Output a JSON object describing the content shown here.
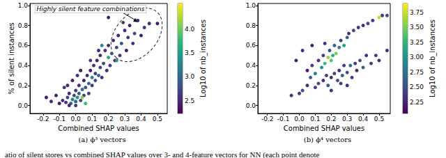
{
  "chart_data": [
    {
      "type": "scatter",
      "title": "(a) ϕ³ vectors",
      "x_label": "Combined SHAP values",
      "y_label": "% of silent instances",
      "annotation": "Highly silent feature combinations",
      "xlim": [
        -0.28,
        0.56
      ],
      "xticks": [
        -0.2,
        -0.1,
        {
          "value": 0,
          "label": "0.0"
        },
        0.1,
        0.2,
        0.3,
        0.4,
        0.5
      ],
      "ylim": [
        -0.08,
        1.02
      ],
      "yticks": [
        {
          "value": 0,
          "label": "0.0"
        },
        0.2,
        0.4,
        0.6,
        0.8,
        {
          "value": 1,
          "label": "1.0"
        }
      ],
      "colorbar": {
        "label": "Log10 of nb_instances",
        "range": [
          2.23,
          4.54
        ],
        "ticks": [
          2.5,
          {
            "value": 3,
            "label": "3.0"
          },
          3.5,
          {
            "value": 4,
            "label": "4.0"
          }
        ]
      },
      "points": [
        [
          -0.1,
          0.02,
          2.4
        ],
        [
          -0.08,
          0.05,
          2.5
        ],
        [
          -0.06,
          0.03,
          2.6
        ],
        [
          -0.05,
          0.08,
          2.7
        ],
        [
          -0.04,
          0.12,
          2.5
        ],
        [
          -0.03,
          0.02,
          2.9
        ],
        [
          -0.02,
          0.06,
          3.2
        ],
        [
          -0.01,
          0.1,
          2.8
        ],
        [
          0,
          0.04,
          3.0
        ],
        [
          0,
          0.15,
          2.6
        ],
        [
          0.01,
          0.08,
          3.4
        ],
        [
          0.02,
          0.12,
          2.9
        ],
        [
          0.02,
          0.2,
          2.5
        ],
        [
          0.03,
          0.05,
          2.7
        ],
        [
          0.04,
          0.16,
          3.1
        ],
        [
          0.05,
          0.1,
          2.6
        ],
        [
          0.05,
          0.25,
          2.4
        ],
        [
          0.06,
          0.18,
          2.8
        ],
        [
          0.07,
          0.3,
          2.5
        ],
        [
          0.08,
          0.12,
          2.7
        ],
        [
          0.08,
          0.22,
          3.0
        ],
        [
          0.09,
          0.35,
          2.4
        ],
        [
          0.1,
          0.2,
          2.6
        ],
        [
          0.1,
          0.28,
          3.3
        ],
        [
          0.11,
          0.4,
          2.5
        ],
        [
          0.12,
          0.25,
          2.8
        ],
        [
          0.12,
          0.32,
          2.6
        ],
        [
          0.13,
          0.45,
          2.4
        ],
        [
          0.14,
          0.3,
          3.0
        ],
        [
          0.15,
          0.38,
          2.7
        ],
        [
          0.15,
          0.5,
          2.5
        ],
        [
          0.16,
          0.28,
          2.5
        ],
        [
          0.17,
          0.42,
          2.8
        ],
        [
          0.18,
          0.55,
          2.6
        ],
        [
          0.19,
          0.35,
          2.5
        ],
        [
          0.2,
          0.48,
          3.6
        ],
        [
          0.2,
          0.6,
          2.5
        ],
        [
          0.21,
          0.4,
          2.6
        ],
        [
          0.22,
          0.52,
          2.9
        ],
        [
          0.23,
          0.65,
          2.5
        ],
        [
          0.24,
          0.45,
          2.4
        ],
        [
          0.25,
          0.58,
          2.7
        ],
        [
          0.26,
          0.7,
          2.5
        ],
        [
          0.27,
          0.5,
          2.6
        ],
        [
          0.28,
          0.62,
          2.8
        ],
        [
          0.3,
          0.75,
          2.5
        ],
        [
          0.31,
          0.55,
          2.4
        ],
        [
          0.32,
          0.68,
          2.6
        ],
        [
          0.33,
          0.8,
          2.4
        ],
        [
          0.35,
          0.62,
          2.5
        ],
        [
          0.36,
          0.72,
          2.7
        ],
        [
          0.38,
          0.85,
          2.5
        ],
        [
          0.4,
          0.7,
          2.4
        ],
        [
          0.42,
          0.78,
          2.6
        ],
        [
          0.45,
          0.82,
          2.5
        ],
        [
          0.5,
          0.82,
          2.4
        ],
        [
          -0.18,
          0.08,
          2.4
        ],
        [
          -0.15,
          0.04,
          2.5
        ],
        [
          -0.12,
          0.1,
          2.4
        ],
        [
          -0.07,
          0.18,
          2.6
        ],
        [
          -0.05,
          0.2,
          2.5
        ],
        [
          -0.02,
          0.25,
          2.4
        ],
        [
          0.01,
          0.3,
          2.5
        ],
        [
          0.03,
          0.35,
          2.4
        ],
        [
          0.06,
          0.02,
          3.8
        ],
        [
          0,
          0,
          2.6
        ],
        [
          -0.04,
          0,
          2.5
        ],
        [
          0.04,
          0.08,
          4.1
        ],
        [
          0.16,
          0.6,
          3.3
        ],
        [
          0.25,
          0.45,
          3.4
        ],
        [
          0.29,
          0.83,
          2.6
        ],
        [
          0.2,
          0.88,
          2.4
        ],
        [
          0.14,
          0.55,
          2.5
        ],
        [
          0.09,
          0.45,
          2.6
        ]
      ]
    },
    {
      "type": "scatter",
      "title": "(b) ϕ⁴ vectors",
      "x_label": "Combined SHAP values",
      "xlim": [
        -0.26,
        0.57
      ],
      "xticks": [
        -0.2,
        -0.1,
        {
          "value": 0,
          "label": "0.0"
        },
        0.1,
        0.2,
        0.3,
        0.4,
        0.5
      ],
      "ylim": [
        -0.08,
        1.02
      ],
      "yticks": [
        {
          "value": 0,
          "label": "0.0"
        },
        0.2,
        0.4,
        0.6,
        0.8,
        {
          "value": 1,
          "label": "1.0"
        }
      ],
      "colorbar": {
        "label": "Log10 of nb_instances",
        "range": [
          2.06,
          3.9
        ],
        "ticks": [
          2.25,
          {
            "value": 2.5,
            "label": "2.50"
          },
          2.75,
          {
            "value": 3,
            "label": "3.00"
          },
          3.25,
          {
            "value": 3.5,
            "label": "3.50"
          },
          3.75
        ]
      },
      "points": [
        [
          -0.05,
          0.1,
          2.3
        ],
        [
          0,
          0.12,
          2.4
        ],
        [
          0.02,
          0.15,
          2.5
        ],
        [
          0.05,
          0.2,
          2.3
        ],
        [
          0.05,
          0.35,
          2.2
        ],
        [
          0.07,
          0.28,
          2.6
        ],
        [
          0.08,
          0.4,
          2.4
        ],
        [
          0.1,
          0.32,
          2.8
        ],
        [
          0.1,
          0.18,
          2.4
        ],
        [
          0.12,
          0.45,
          2.3
        ],
        [
          0.12,
          0.22,
          2.5
        ],
        [
          0.14,
          0.38,
          3.0
        ],
        [
          0.15,
          0.25,
          2.3
        ],
        [
          0.15,
          0.5,
          2.4
        ],
        [
          0.16,
          0.42,
          3.3
        ],
        [
          0.17,
          0.3,
          2.4
        ],
        [
          0.18,
          0.48,
          3.6
        ],
        [
          0.18,
          0.2,
          2.6
        ],
        [
          0.19,
          0.55,
          2.5
        ],
        [
          0.2,
          0.45,
          3.4
        ],
        [
          0.2,
          0.28,
          2.3
        ],
        [
          0.21,
          0.5,
          3.2
        ],
        [
          0.22,
          0.6,
          2.6
        ],
        [
          0.22,
          0.32,
          2.4
        ],
        [
          0.23,
          0.52,
          3.5
        ],
        [
          0.24,
          0.25,
          2.5
        ],
        [
          0.25,
          0.58,
          2.9
        ],
        [
          0.25,
          0.35,
          2.3
        ],
        [
          0.26,
          0.65,
          2.4
        ],
        [
          0.27,
          0.3,
          2.6
        ],
        [
          0.28,
          0.6,
          3.1
        ],
        [
          0.28,
          0.4,
          2.4
        ],
        [
          0.3,
          0.68,
          2.6
        ],
        [
          0.3,
          0.33,
          2.5
        ],
        [
          0.31,
          0.72,
          2.3
        ],
        [
          0.32,
          0.4,
          2.7
        ],
        [
          0.33,
          0.28,
          2.4
        ],
        [
          0.34,
          0.75,
          2.5
        ],
        [
          0.35,
          0.42,
          2.4
        ],
        [
          0.36,
          0.35,
          2.3
        ],
        [
          0.37,
          0.78,
          2.4
        ],
        [
          0.38,
          0.45,
          2.5
        ],
        [
          0.4,
          0.8,
          2.3
        ],
        [
          0.4,
          0.38,
          2.6
        ],
        [
          0.42,
          0.5,
          2.3
        ],
        [
          0.43,
          0.82,
          2.5
        ],
        [
          0.45,
          0.42,
          2.4
        ],
        [
          0.46,
          0.85,
          2.3
        ],
        [
          0.48,
          0.5,
          2.4
        ],
        [
          0.5,
          0.88,
          3.7
        ],
        [
          0.5,
          0.45,
          2.3
        ],
        [
          0.52,
          0.9,
          2.4
        ],
        [
          0.55,
          0.55,
          2.3
        ],
        [
          0.55,
          0.9,
          2.5
        ],
        [
          0.2,
          0.15,
          2.3
        ],
        [
          0.26,
          0.22,
          2.4
        ],
        [
          0.3,
          0.2,
          2.3
        ],
        [
          0.16,
          0.62,
          2.3
        ],
        [
          0.08,
          0.6,
          2.2
        ],
        [
          0.02,
          0.55,
          2.3
        ],
        [
          -0.02,
          0.45,
          2.2
        ]
      ]
    }
  ],
  "caption": "atio of silent stores vs combined SHAP values over 3- and 4-feature vectors for NN (each point denote"
}
